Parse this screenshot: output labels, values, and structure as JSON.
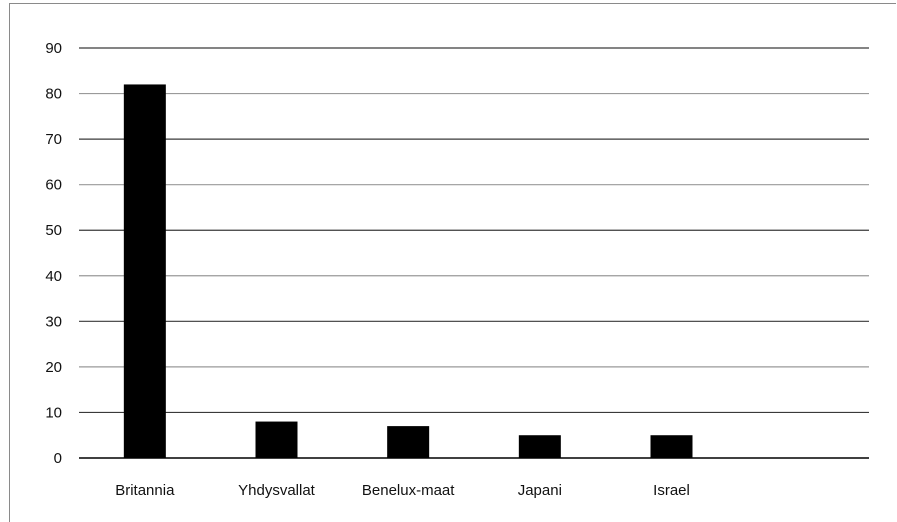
{
  "chart_data": {
    "type": "bar",
    "categories": [
      "Britannia",
      "Yhdysvallat",
      "Benelux-maat",
      "Japani",
      "Israel"
    ],
    "values": [
      82,
      8,
      7,
      5,
      5
    ],
    "title": "",
    "xlabel": "",
    "ylabel": "",
    "ylim": [
      0,
      90
    ],
    "yticks": [
      0,
      10,
      20,
      30,
      40,
      50,
      60,
      70,
      80,
      90
    ],
    "grid": true,
    "legend": "none",
    "colors": {
      "bar": "#000000",
      "grid": "#b0b0b0",
      "axis": "#000000"
    }
  }
}
